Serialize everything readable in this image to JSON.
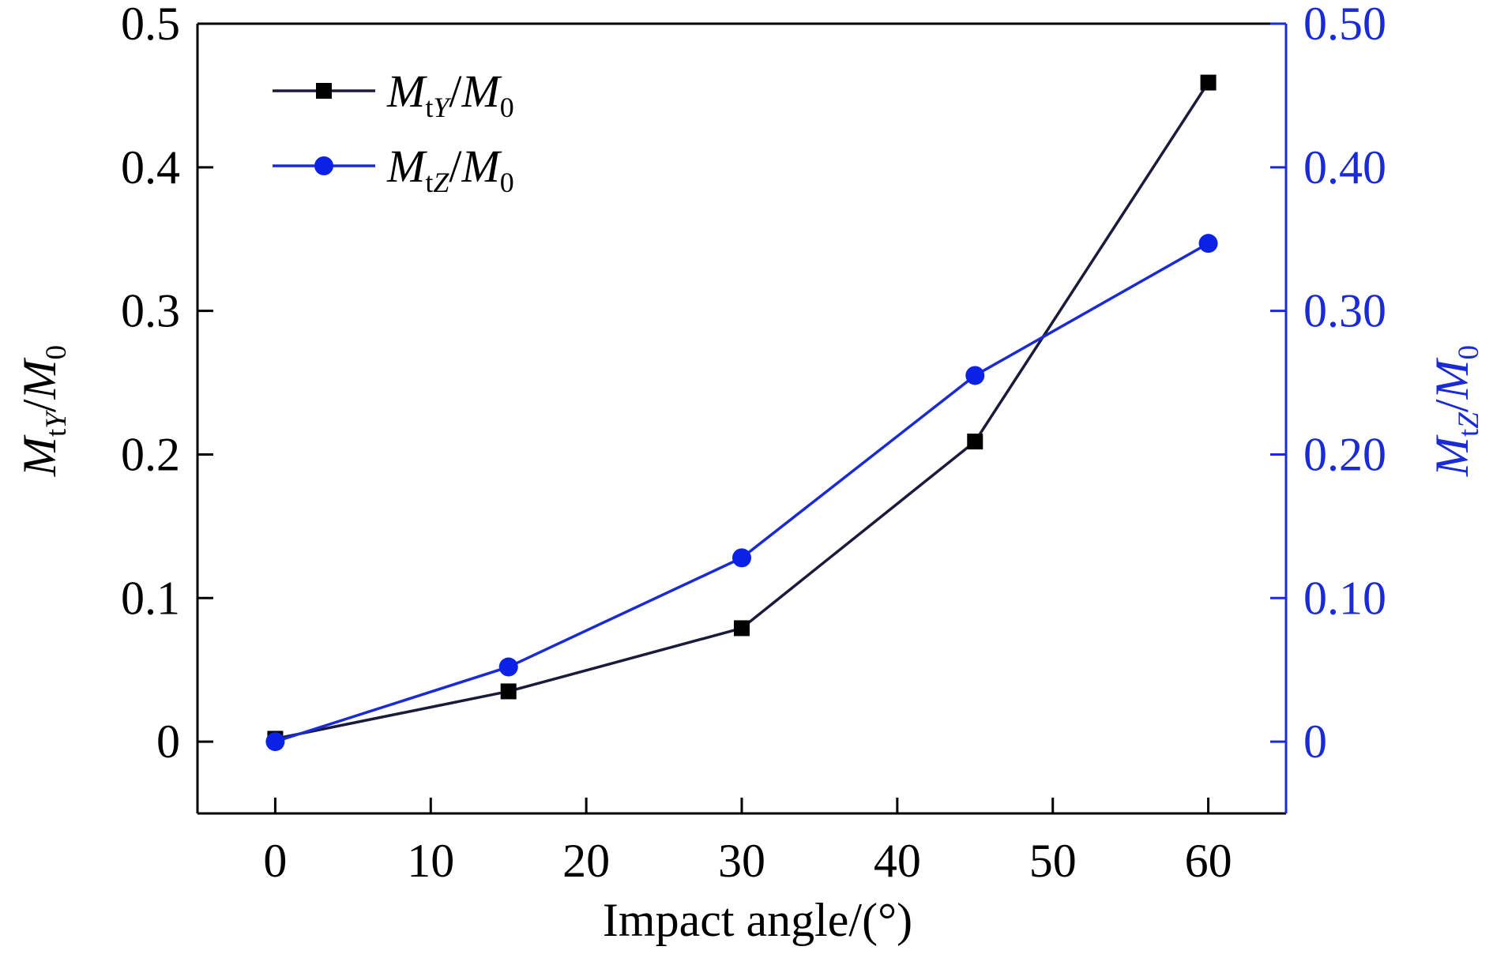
{
  "chart_data": {
    "type": "line",
    "xlabel": "Impact angle/(°)",
    "ylabel_left": "MtY/M0",
    "ylabel_right": "MtZ/M0",
    "x": [
      0,
      15,
      30,
      45,
      60
    ],
    "xlim": [
      -5,
      65
    ],
    "ylim": [
      -0.05,
      0.5
    ],
    "xticks": [
      0,
      10,
      20,
      30,
      40,
      50,
      60
    ],
    "yticks_left": [
      0,
      0.1,
      0.2,
      0.3,
      0.4,
      0.5
    ],
    "yticks_left_labels": [
      "0",
      "0.1",
      "0.2",
      "0.3",
      "0.4",
      "0.5"
    ],
    "yticks_right": [
      0,
      0.1,
      0.2,
      0.3,
      0.4,
      0.5
    ],
    "yticks_right_labels": [
      "0",
      "0.10",
      "0.20",
      "0.30",
      "0.40",
      "0.50"
    ],
    "grid": false,
    "legend_position": "top-left",
    "series": [
      {
        "name": "MtY/M0",
        "axis": "left",
        "marker": "square",
        "color": "#1a1a3a",
        "marker_color": "#000000",
        "values": [
          0.002,
          0.035,
          0.079,
          0.209,
          0.459
        ]
      },
      {
        "name": "MtZ/M0",
        "axis": "right",
        "marker": "circle",
        "color": "#1a2bd6",
        "marker_color": "#0b22e6",
        "values": [
          0.0,
          0.052,
          0.128,
          0.255,
          0.347
        ]
      }
    ],
    "right_axis_color": "#1a2bd6"
  }
}
